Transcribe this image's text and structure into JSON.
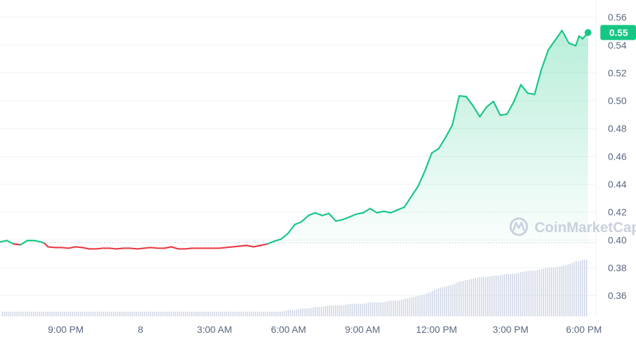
{
  "chart_data": {
    "type": "line",
    "y_ticks": [
      "0.56",
      "0.54",
      "0.52",
      "0.50",
      "0.48",
      "0.46",
      "0.44",
      "0.42",
      "0.40",
      "0.38",
      "0.36"
    ],
    "x_ticks": [
      "9:00 PM",
      "8",
      "3:00 AM",
      "6:00 AM",
      "9:00 AM",
      "12:00 PM",
      "3:00 PM",
      "6:00 PM"
    ],
    "ylim": [
      0.345,
      0.565
    ],
    "baseline_price": 0.398,
    "current_price_label": "0.55",
    "current_price": 0.549,
    "watermark": "CoinMarketCap",
    "colors": {
      "up": "#16c784",
      "down": "#ea3943",
      "grid": "#eff2f5",
      "volume": "#cfd6e4"
    },
    "x": [
      0,
      10,
      20,
      30,
      40,
      50,
      60,
      65,
      70,
      80,
      90,
      100,
      110,
      120,
      130,
      140,
      150,
      160,
      170,
      180,
      190,
      200,
      210,
      220,
      230,
      240,
      250,
      260,
      270,
      280,
      290,
      300,
      310,
      320,
      330,
      340,
      350,
      360,
      370,
      380,
      390,
      400,
      410,
      420,
      430,
      440,
      450,
      460,
      470,
      480,
      490,
      500,
      510,
      520,
      530,
      540,
      550,
      560,
      570,
      580,
      590,
      600,
      610,
      620,
      630,
      640,
      650,
      660,
      670,
      680,
      690,
      700,
      710,
      720,
      730,
      740,
      750,
      760,
      770,
      780,
      790,
      800,
      810,
      820,
      830,
      840,
      845,
      850,
      858
    ],
    "values": [
      0.3985,
      0.3995,
      0.397,
      0.3965,
      0.3995,
      0.3995,
      0.3985,
      0.3975,
      0.395,
      0.3945,
      0.3945,
      0.394,
      0.395,
      0.3945,
      0.3935,
      0.3935,
      0.394,
      0.394,
      0.3935,
      0.394,
      0.394,
      0.3935,
      0.394,
      0.3945,
      0.394,
      0.394,
      0.395,
      0.3935,
      0.3935,
      0.394,
      0.394,
      0.394,
      0.394,
      0.394,
      0.3945,
      0.395,
      0.3955,
      0.396,
      0.395,
      0.396,
      0.397,
      0.399,
      0.4005,
      0.4045,
      0.411,
      0.413,
      0.4175,
      0.4195,
      0.4175,
      0.419,
      0.4135,
      0.4145,
      0.4165,
      0.4185,
      0.4195,
      0.4225,
      0.4195,
      0.4205,
      0.4195,
      0.4215,
      0.4235,
      0.431,
      0.4385,
      0.4495,
      0.4625,
      0.4655,
      0.4735,
      0.4825,
      0.5035,
      0.503,
      0.4965,
      0.4885,
      0.4955,
      0.4995,
      0.4895,
      0.4905,
      0.4995,
      0.5115,
      0.5055,
      0.5045,
      0.5225,
      0.5365,
      0.5435,
      0.5505,
      0.5415,
      0.5395,
      0.5465,
      0.5445,
      0.549
    ],
    "volume": [
      0.003,
      0.003,
      0.003,
      0.003,
      0.003,
      0.003,
      0.003,
      0.003,
      0.003,
      0.003,
      0.003,
      0.003,
      0.003,
      0.003,
      0.003,
      0.003,
      0.003,
      0.003,
      0.003,
      0.003,
      0.003,
      0.003,
      0.003,
      0.003,
      0.003,
      0.003,
      0.003,
      0.003,
      0.003,
      0.003,
      0.003,
      0.003,
      0.003,
      0.003,
      0.003,
      0.003,
      0.003,
      0.003,
      0.003,
      0.003,
      0.003,
      0.003,
      0.003,
      0.004,
      0.004,
      0.005,
      0.005,
      0.006,
      0.006,
      0.007,
      0.007,
      0.007,
      0.008,
      0.008,
      0.008,
      0.009,
      0.009,
      0.009,
      0.01,
      0.01,
      0.011,
      0.012,
      0.013,
      0.014,
      0.016,
      0.018,
      0.019,
      0.02,
      0.022,
      0.023,
      0.024,
      0.025,
      0.025,
      0.026,
      0.026,
      0.027,
      0.027,
      0.028,
      0.029,
      0.029,
      0.03,
      0.031,
      0.031,
      0.032,
      0.033,
      0.035,
      0.035,
      0.036,
      0.036
    ]
  }
}
